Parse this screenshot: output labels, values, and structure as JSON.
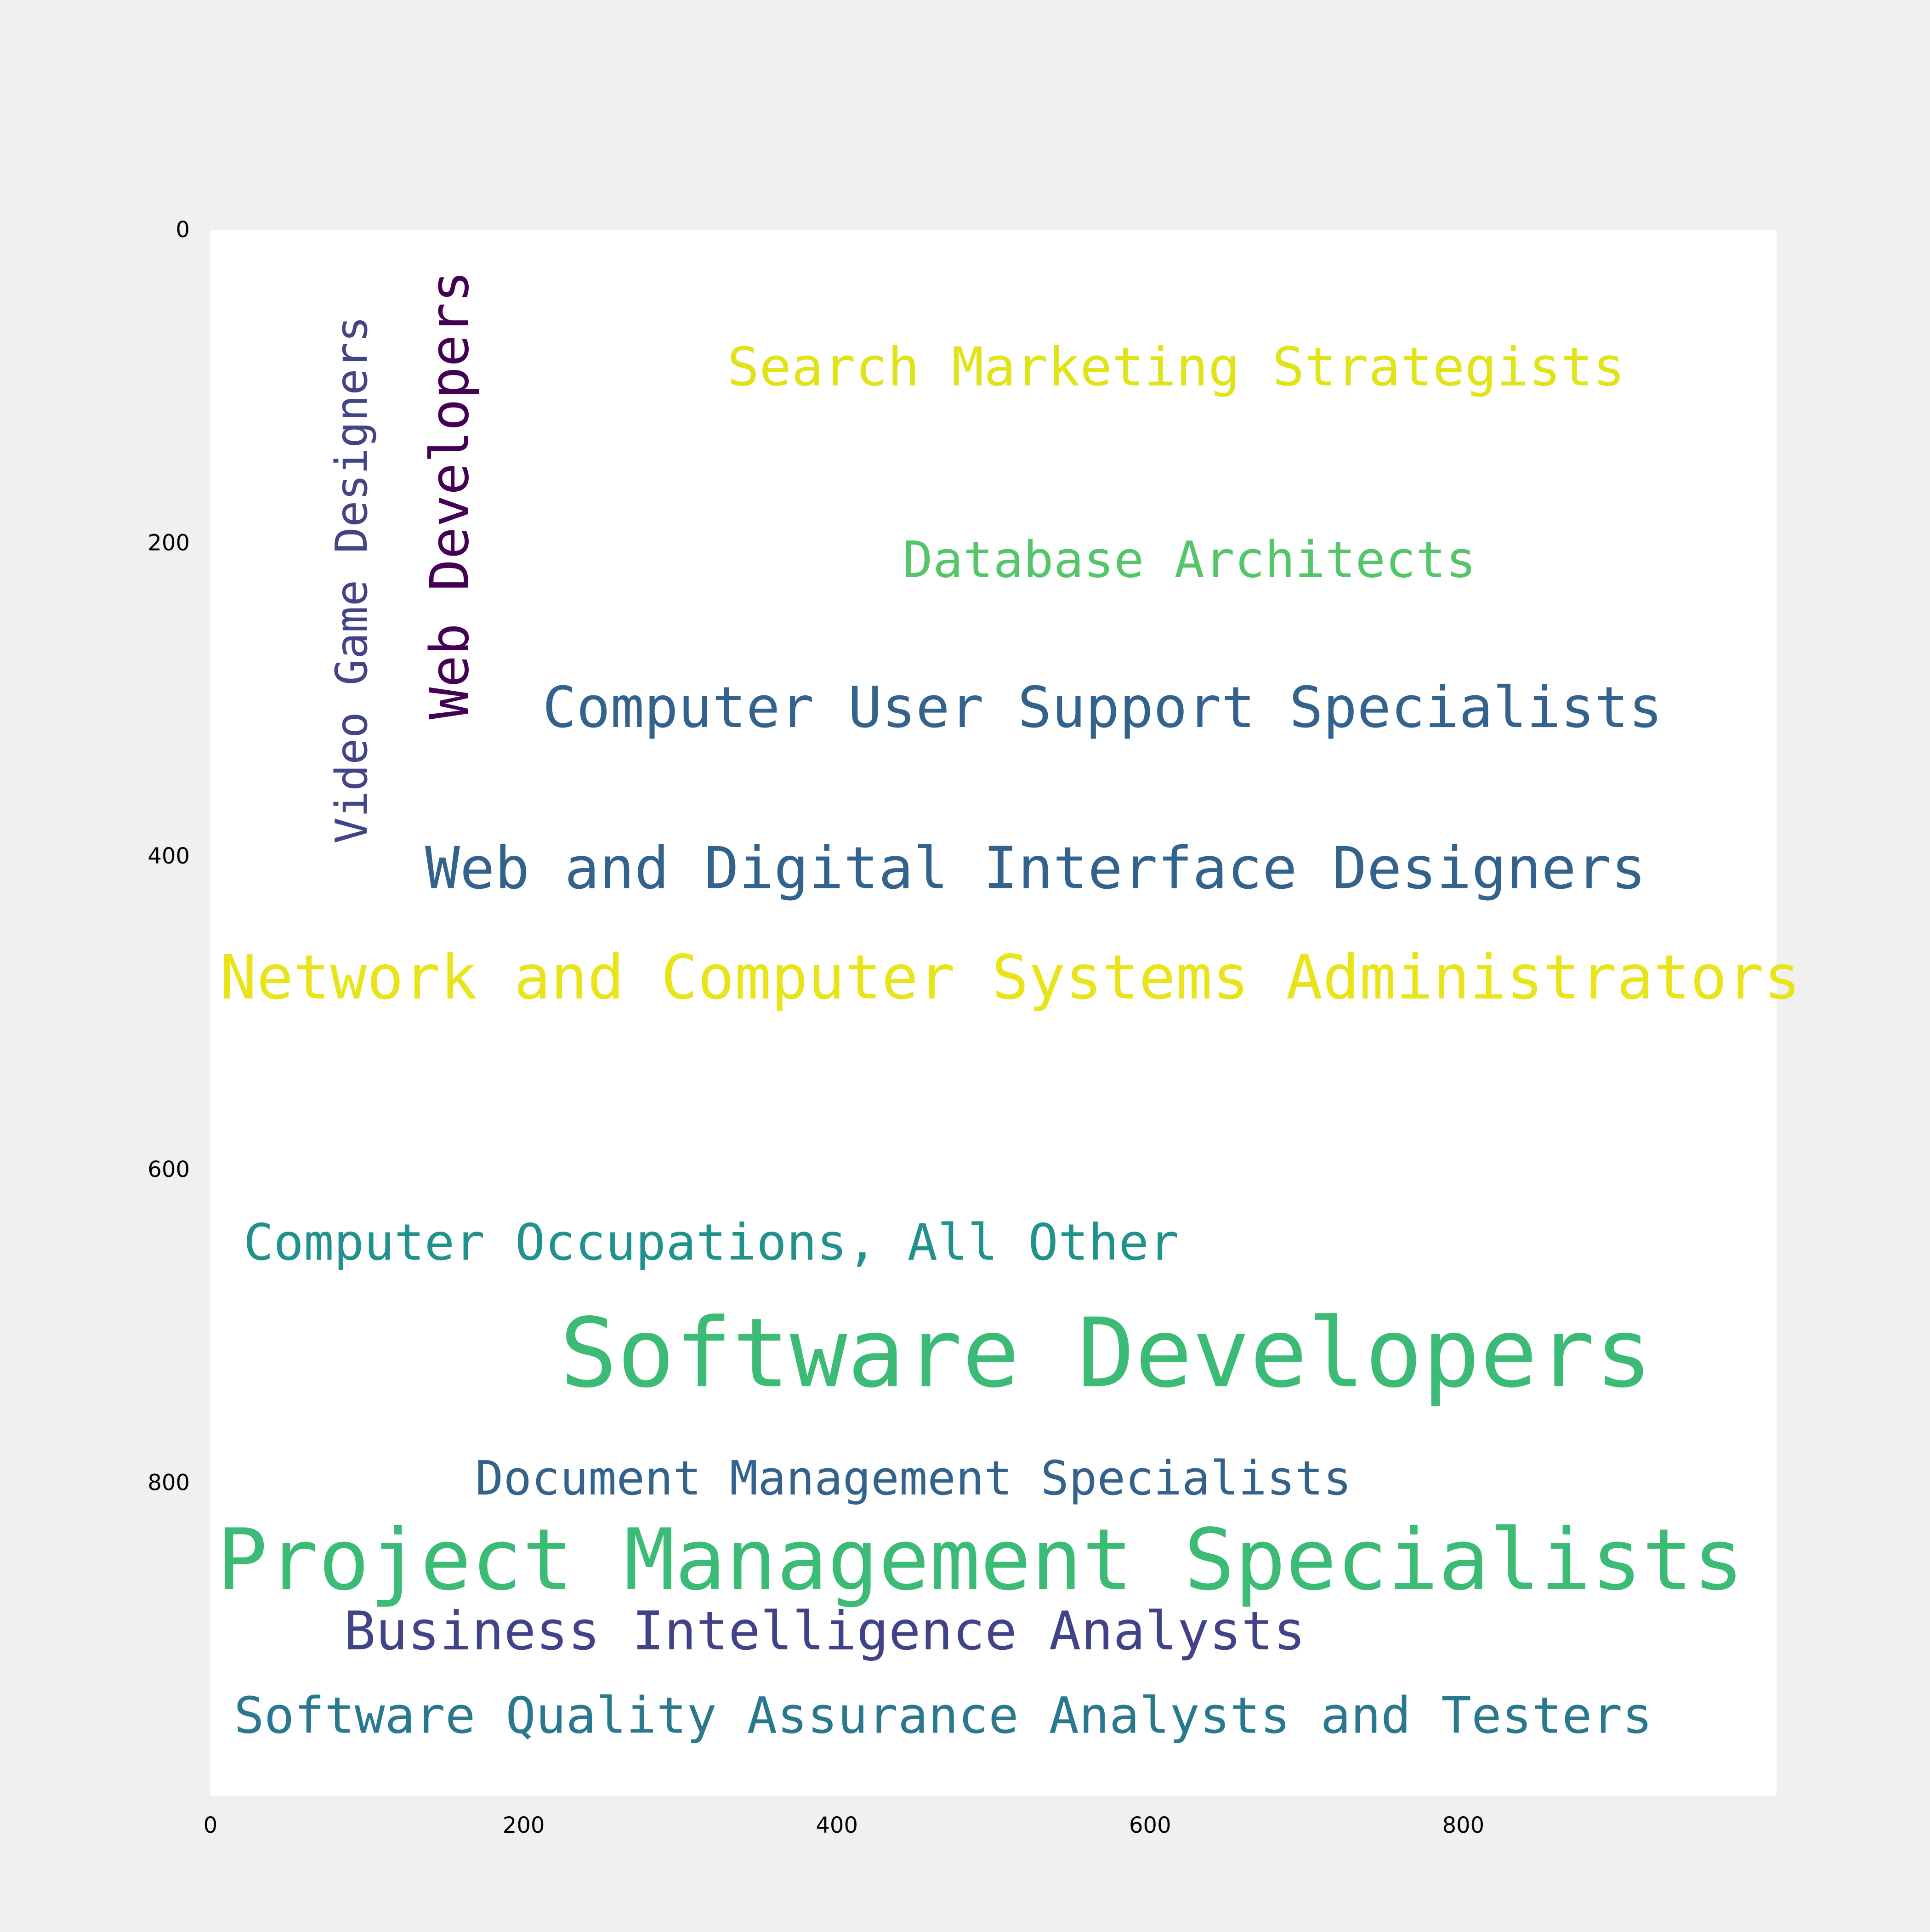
{
  "chart_data": {
    "type": "wordcloud",
    "xlim": [
      0,
      1000
    ],
    "ylim": [
      0,
      1000
    ],
    "y_inverted": true,
    "grid": false,
    "x_ticks": [
      0,
      200,
      400,
      600,
      800
    ],
    "y_ticks": [
      0,
      200,
      400,
      600,
      800
    ],
    "words": [
      {
        "text": "Search Marketing Strategists",
        "x": 330,
        "y": 68,
        "size": 34,
        "color": "#dfe318",
        "rotate": 0
      },
      {
        "text": "Database Architects",
        "x": 442,
        "y": 192,
        "size": 32,
        "color": "#54c568",
        "rotate": 0
      },
      {
        "text": "Computer User Support Specialists",
        "x": 212,
        "y": 284,
        "size": 36,
        "color": "#33638d",
        "rotate": 0
      },
      {
        "text": "Web and Digital Interface Designers",
        "x": 137,
        "y": 386,
        "size": 37,
        "color": "#33638d",
        "rotate": 0
      },
      {
        "text": "Network and Computer Systems Administrators",
        "x": 6,
        "y": 455,
        "size": 39,
        "color": "#e8e419",
        "rotate": 0
      },
      {
        "text": "Web Developers",
        "x": 133,
        "y": 26,
        "size": 34,
        "color": "#440154",
        "rotate": -90
      },
      {
        "text": "Video Game Designers",
        "x": 74,
        "y": 55,
        "size": 28,
        "color": "#414487",
        "rotate": -90
      },
      {
        "text": "Computer Occupations, All Other",
        "x": 21,
        "y": 628,
        "size": 32,
        "color": "#21918c",
        "rotate": 0
      },
      {
        "text": "Software Developers",
        "x": 223,
        "y": 682,
        "size": 61,
        "color": "#3bbb75",
        "rotate": 0
      },
      {
        "text": "Document Management Specialists",
        "x": 169,
        "y": 780,
        "size": 30,
        "color": "#33638d",
        "rotate": 0
      },
      {
        "text": "Project Management Specialists",
        "x": 4,
        "y": 818,
        "size": 54,
        "color": "#3bbb75",
        "rotate": 0
      },
      {
        "text": "Business Intelligence Analysts",
        "x": 85,
        "y": 875,
        "size": 34,
        "color": "#404387",
        "rotate": 0
      },
      {
        "text": "Software Quality Assurance Analysts and Testers",
        "x": 15,
        "y": 930,
        "size": 32,
        "color": "#2a788e",
        "rotate": 0
      }
    ]
  }
}
